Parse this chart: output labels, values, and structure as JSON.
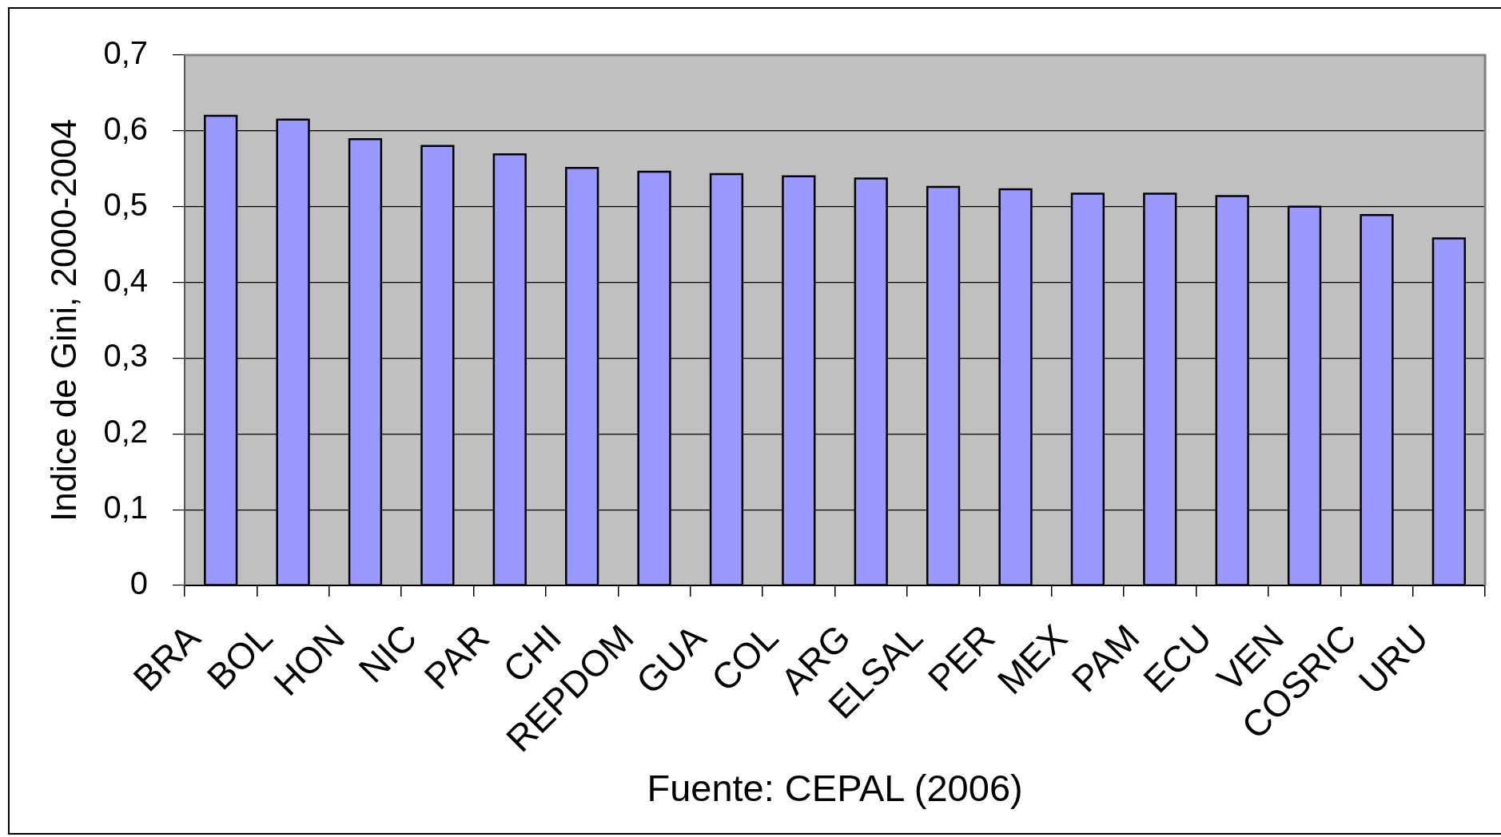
{
  "chart_data": {
    "type": "bar",
    "ylabel": "Indice de Gini, 2000-2004",
    "annotations": [
      "Fuente: CEPAL (2006)"
    ],
    "categories": [
      "BRA",
      "BOL",
      "HON",
      "NIC",
      "PAR",
      "CHI",
      "REPDOM",
      "GUA",
      "COL",
      "ARG",
      "ELSAL",
      "PER",
      "MEX",
      "PAM",
      "ECU",
      "VEN",
      "COSRIC",
      "URU"
    ],
    "values": [
      0.62,
      0.615,
      0.589,
      0.58,
      0.569,
      0.551,
      0.546,
      0.543,
      0.54,
      0.537,
      0.526,
      0.523,
      0.517,
      0.517,
      0.514,
      0.5,
      0.489,
      0.458
    ],
    "color": "#9999ff",
    "ylim": [
      0,
      0.7
    ],
    "yticks": [
      0,
      {
        "value": 0.1,
        "label": "0,1"
      },
      {
        "value": 0.2,
        "label": "0,2"
      },
      {
        "value": 0.3,
        "label": "0,3"
      },
      {
        "value": 0.4,
        "label": "0,4"
      },
      {
        "value": 0.5,
        "label": "0,5"
      },
      {
        "value": 0.6,
        "label": "0,6"
      },
      {
        "value": 0.7,
        "label": "0,7"
      }
    ],
    "grid": "y"
  }
}
